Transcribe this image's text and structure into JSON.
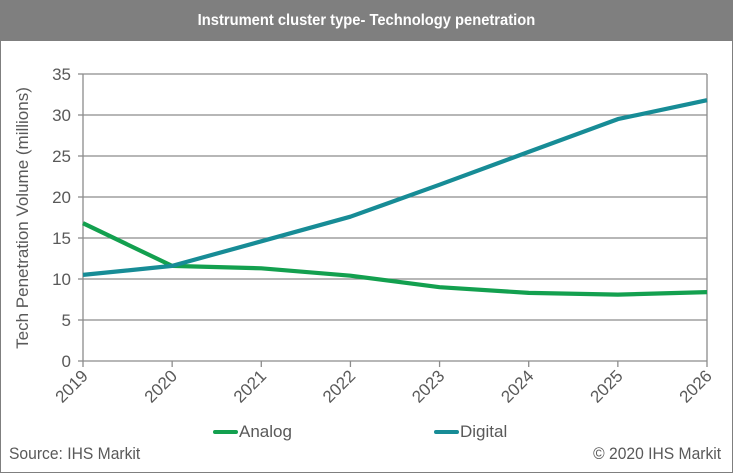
{
  "header": {
    "title": "Instrument cluster type- Technology penetration"
  },
  "chart_data": {
    "type": "line",
    "title": "Instrument cluster type- Technology penetration",
    "xlabel": "",
    "ylabel": "Tech Penetration Volume (millions)",
    "categories": [
      "2019",
      "2020",
      "2021",
      "2022",
      "2023",
      "2024",
      "2025",
      "2026"
    ],
    "ylim": [
      0,
      35
    ],
    "yticks": [
      "0",
      "5",
      "10",
      "15",
      "20",
      "25",
      "30",
      "35"
    ],
    "grid": true,
    "legend_position": "bottom",
    "series": [
      {
        "name": "Analog",
        "color": "#13a04f",
        "values": [
          16.8,
          11.6,
          11.3,
          10.4,
          9.0,
          8.3,
          8.1,
          8.4
        ]
      },
      {
        "name": "Digital",
        "color": "#178c96",
        "values": [
          10.5,
          11.6,
          14.6,
          17.6,
          21.5,
          25.5,
          29.5,
          31.8
        ]
      }
    ]
  },
  "footer": {
    "source": "Source: IHS Markit",
    "copyright": "© 2020 IHS Markit"
  }
}
